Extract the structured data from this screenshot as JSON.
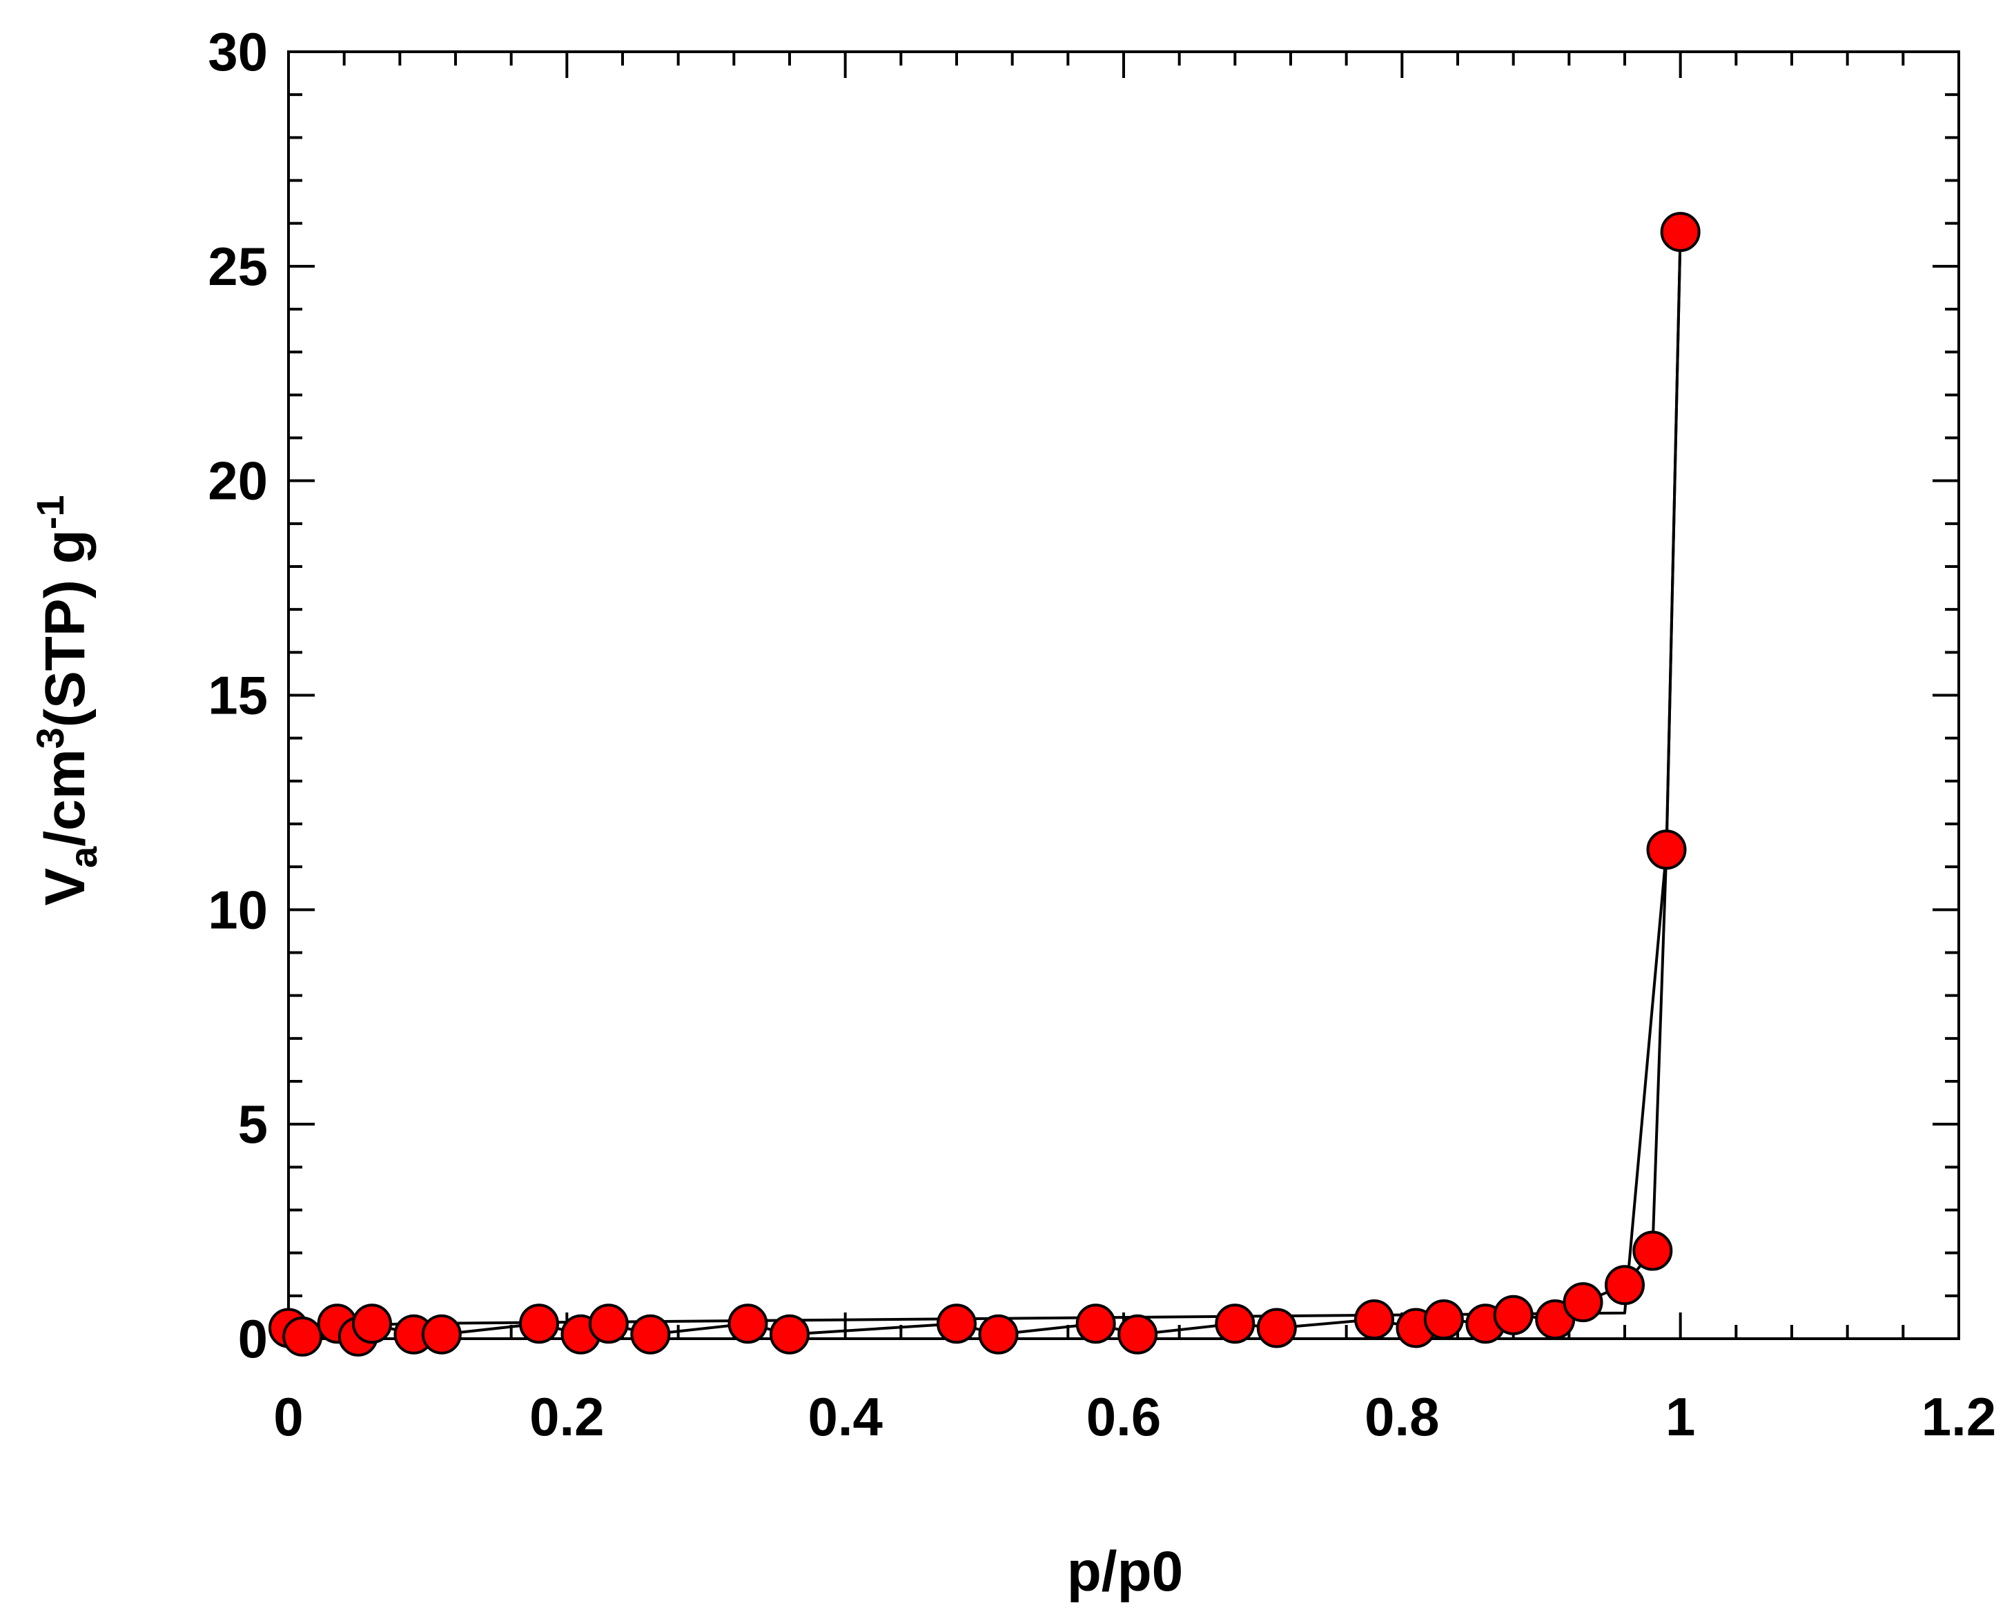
{
  "chart_data": {
    "type": "scatter",
    "xlabel": "p/p0",
    "ylabel": {
      "base": "V",
      "sub": "a",
      "mid": "/cm",
      "sup1": "3",
      "tail": "(STP) g",
      "sup2": "-1"
    },
    "xlim": [
      0,
      1.2
    ],
    "ylim": [
      0,
      30
    ],
    "x_ticks": [
      0,
      0.2,
      0.4,
      0.6,
      0.8,
      1,
      1.2
    ],
    "x_tick_labels": [
      "0",
      "0.2",
      "0.4",
      "0.6",
      "0.8",
      "1",
      "1.2"
    ],
    "y_ticks": [
      0,
      5,
      10,
      15,
      20,
      25,
      30
    ],
    "y_tick_labels": [
      "0",
      "5",
      "10",
      "15",
      "20",
      "25",
      "30"
    ],
    "grid": false,
    "marker_color": "#ff0000",
    "line_color": "#000000",
    "series": [
      {
        "values": [
          [
            0.0,
            0.25
          ],
          [
            0.01,
            0.05
          ],
          [
            0.035,
            0.35
          ],
          [
            0.05,
            0.05
          ],
          [
            0.06,
            0.35
          ],
          [
            0.09,
            0.1
          ],
          [
            0.11,
            0.1
          ],
          [
            0.18,
            0.35
          ],
          [
            0.21,
            0.1
          ],
          [
            0.23,
            0.35
          ],
          [
            0.26,
            0.1
          ],
          [
            0.33,
            0.35
          ],
          [
            0.36,
            0.1
          ],
          [
            0.48,
            0.35
          ],
          [
            0.51,
            0.1
          ],
          [
            0.58,
            0.35
          ],
          [
            0.61,
            0.1
          ],
          [
            0.68,
            0.35
          ],
          [
            0.71,
            0.25
          ],
          [
            0.78,
            0.45
          ],
          [
            0.81,
            0.25
          ],
          [
            0.83,
            0.45
          ],
          [
            0.86,
            0.35
          ],
          [
            0.88,
            0.55
          ],
          [
            0.91,
            0.45
          ],
          [
            0.93,
            0.85
          ],
          [
            0.96,
            1.25
          ],
          [
            0.98,
            2.05
          ],
          [
            0.99,
            11.4
          ],
          [
            1.0,
            25.8
          ]
        ]
      },
      {
        "values": [
          [
            0.0,
            0.25
          ],
          [
            0.085,
            0.35
          ],
          [
            0.96,
            0.6
          ],
          [
            0.99,
            11.4
          ],
          [
            1.0,
            25.8
          ]
        ]
      }
    ]
  }
}
